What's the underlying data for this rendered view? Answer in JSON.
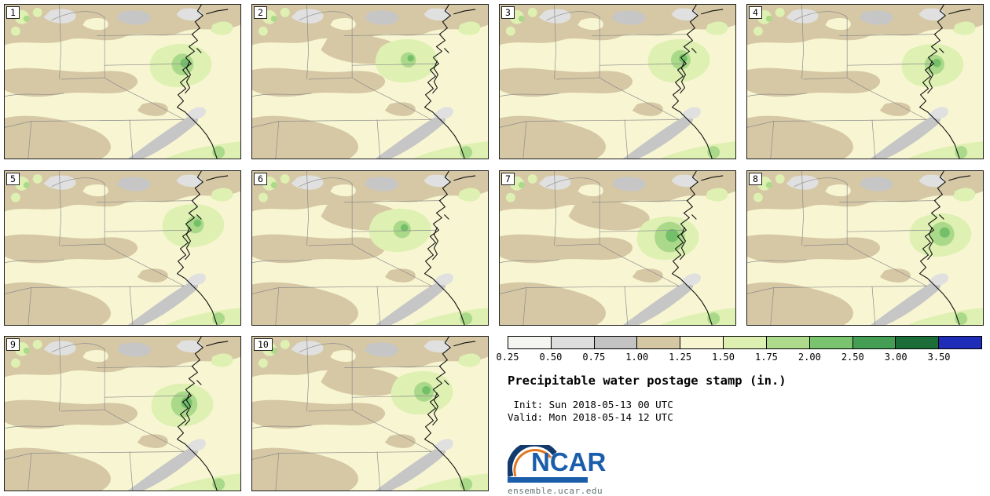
{
  "panels": [
    {
      "label": "1"
    },
    {
      "label": "2"
    },
    {
      "label": "3"
    },
    {
      "label": "4"
    },
    {
      "label": "5"
    },
    {
      "label": "6"
    },
    {
      "label": "7"
    },
    {
      "label": "8"
    },
    {
      "label": "9"
    },
    {
      "label": "10"
    }
  ],
  "colorbar": {
    "tick_labels": [
      "0.25",
      "0.50",
      "0.75",
      "1.00",
      "1.25",
      "1.50",
      "1.75",
      "2.00",
      "2.50",
      "3.00",
      "3.50"
    ],
    "segments": [
      {
        "color": "#f4f4f0"
      },
      {
        "color": "#dedede"
      },
      {
        "color": "#c3c3c3"
      },
      {
        "color": "#d5c7a3"
      },
      {
        "color": "#f8f6d0"
      },
      {
        "color": "#ddefb1"
      },
      {
        "color": "#aeda8b"
      },
      {
        "color": "#7ac46f"
      },
      {
        "color": "#449f55"
      },
      {
        "color": "#1c6e38"
      },
      {
        "color": "#1f2cb8"
      }
    ]
  },
  "title": "Precipitable water postage stamp (in.)",
  "timing": {
    "init": " Init: Sun 2018-05-13 00 UTC",
    "valid": "Valid: Mon 2018-05-14 12 UTC"
  },
  "branding": {
    "logo_text": "NCAR",
    "site": "ensemble.ucar.edu"
  }
}
